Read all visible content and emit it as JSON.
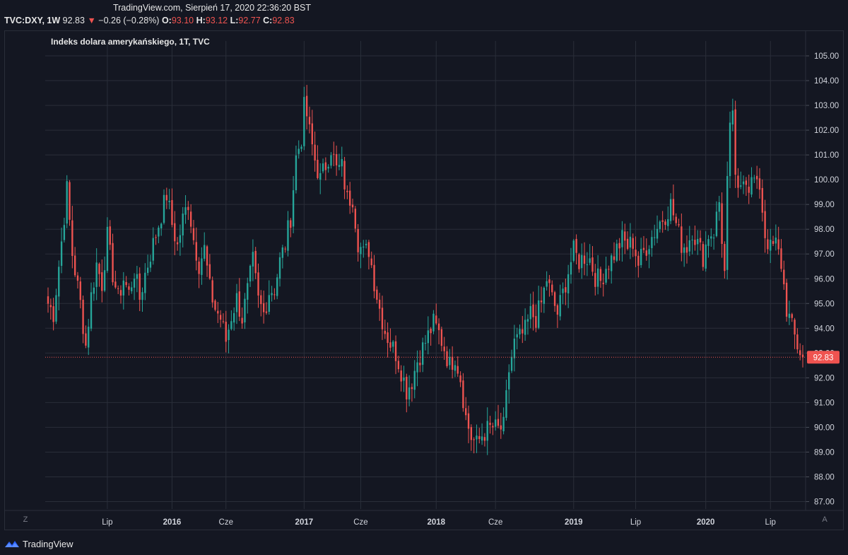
{
  "header": {
    "title": "TradingView.com, Sierpień 17, 2020 22:36:20 BST",
    "symbol": "TVC:DXY, 1W",
    "last": "92.83",
    "change_arrow": "▼",
    "change": "−0.26 (−0.28%)",
    "o_label": "O:",
    "o_value": "93.10",
    "h_label": "H:",
    "h_value": "93.12",
    "l_label": "L:",
    "l_value": "92.77",
    "c_label": "C:",
    "c_value": "92.83"
  },
  "chart_title": "Indeks dolara amerykańskiego, 1T, TVC",
  "buttons": {
    "left_corner": "Z",
    "right_corner": "A"
  },
  "footer": {
    "brand": "TradingView",
    "icon": "tradingview-logo-icon"
  },
  "colors": {
    "background": "#141722",
    "grid": "#2a2e39",
    "up": "#26a69a",
    "down": "#ef5350",
    "price_line": "#ef5350"
  },
  "chart_data": {
    "type": "candlestick",
    "title": "Indeks dolara amerykańskiego, 1T, TVC",
    "symbol": "TVC:DXY",
    "interval": "1W",
    "ylim": [
      86.7,
      105.6
    ],
    "y_ticks": [
      "87.00",
      "88.00",
      "89.00",
      "90.00",
      "91.00",
      "92.00",
      "93.00",
      "94.00",
      "95.00",
      "96.00",
      "97.00",
      "98.00",
      "99.00",
      "100.00",
      "101.00",
      "102.00",
      "103.00",
      "104.00",
      "105.00"
    ],
    "y_tick_values": [
      87,
      88,
      89,
      90,
      91,
      92,
      93,
      94,
      95,
      96,
      97,
      98,
      99,
      100,
      101,
      102,
      103,
      104,
      105
    ],
    "x_labels": [
      "Lip",
      "2016",
      "Cze",
      "2017",
      "Cze",
      "2018",
      "Cze",
      "2019",
      "Lip",
      "2020",
      "Lip"
    ],
    "x_label_bold": [
      false,
      true,
      false,
      true,
      false,
      true,
      false,
      true,
      false,
      true,
      false
    ],
    "x_label_index": [
      22,
      46,
      66,
      95,
      116,
      144,
      166,
      195,
      218,
      244,
      268
    ],
    "last_price": 92.83,
    "last_price_label": "92.83",
    "grid": true,
    "price_path": [
      [
        0,
        95.0
      ],
      [
        2,
        94.6
      ],
      [
        5,
        97.5
      ],
      [
        7,
        99.6
      ],
      [
        9,
        97.0
      ],
      [
        12,
        95.0
      ],
      [
        14,
        93.3
      ],
      [
        16,
        95.3
      ],
      [
        18,
        96.6
      ],
      [
        20,
        95.8
      ],
      [
        22,
        97.7
      ],
      [
        24,
        96.2
      ],
      [
        26,
        95.2
      ],
      [
        28,
        96.0
      ],
      [
        30,
        95.4
      ],
      [
        32,
        96.3
      ],
      [
        34,
        95.2
      ],
      [
        36,
        96.2
      ],
      [
        38,
        97.0
      ],
      [
        40,
        97.8
      ],
      [
        42,
        98.6
      ],
      [
        44,
        99.4
      ],
      [
        46,
        98.2
      ],
      [
        48,
        97.3
      ],
      [
        50,
        98.4
      ],
      [
        52,
        99.1
      ],
      [
        54,
        97.6
      ],
      [
        56,
        96.6
      ],
      [
        58,
        97.2
      ],
      [
        60,
        95.6
      ],
      [
        62,
        94.8
      ],
      [
        64,
        94.4
      ],
      [
        66,
        93.5
      ],
      [
        68,
        94.5
      ],
      [
        70,
        95.2
      ],
      [
        72,
        94.4
      ],
      [
        74,
        95.5
      ],
      [
        76,
        96.7
      ],
      [
        78,
        95.1
      ],
      [
        80,
        94.6
      ],
      [
        82,
        95.5
      ],
      [
        84,
        95.6
      ],
      [
        86,
        96.7
      ],
      [
        88,
        97.4
      ],
      [
        90,
        98.5
      ],
      [
        92,
        100.9
      ],
      [
        94,
        101.7
      ],
      [
        95,
        102.9
      ],
      [
        96,
        102.6
      ],
      [
        97,
        101.9
      ],
      [
        99,
        100.8
      ],
      [
        101,
        100.0
      ],
      [
        103,
        100.6
      ],
      [
        105,
        101.3
      ],
      [
        107,
        100.4
      ],
      [
        109,
        100.5
      ],
      [
        111,
        99.2
      ],
      [
        113,
        99.3
      ],
      [
        115,
        97.5
      ],
      [
        117,
        97.0
      ],
      [
        119,
        97.2
      ],
      [
        121,
        95.9
      ],
      [
        123,
        94.8
      ],
      [
        125,
        93.9
      ],
      [
        127,
        93.4
      ],
      [
        129,
        93.0
      ],
      [
        131,
        92.3
      ],
      [
        133,
        91.5
      ],
      [
        135,
        91.9
      ],
      [
        137,
        92.7
      ],
      [
        139,
        93.2
      ],
      [
        141,
        93.7
      ],
      [
        143,
        94.2
      ],
      [
        145,
        93.8
      ],
      [
        147,
        93.2
      ],
      [
        149,
        92.5
      ],
      [
        151,
        92.9
      ],
      [
        153,
        92.0
      ],
      [
        155,
        90.4
      ],
      [
        157,
        89.6
      ],
      [
        159,
        89.3
      ],
      [
        161,
        89.7
      ],
      [
        163,
        89.9
      ],
      [
        165,
        90.0
      ],
      [
        167,
        89.9
      ],
      [
        169,
        90.0
      ],
      [
        171,
        92.3
      ],
      [
        173,
        93.4
      ],
      [
        175,
        93.6
      ],
      [
        177,
        93.9
      ],
      [
        179,
        94.6
      ],
      [
        181,
        94.4
      ],
      [
        183,
        95.0
      ],
      [
        185,
        96.0
      ],
      [
        187,
        95.2
      ],
      [
        189,
        94.6
      ],
      [
        191,
        95.4
      ],
      [
        193,
        96.3
      ],
      [
        195,
        97.1
      ],
      [
        197,
        96.7
      ],
      [
        199,
        96.9
      ],
      [
        201,
        96.8
      ],
      [
        203,
        96.1
      ],
      [
        205,
        95.9
      ],
      [
        207,
        96.5
      ],
      [
        209,
        96.8
      ],
      [
        211,
        97.2
      ],
      [
        213,
        97.6
      ],
      [
        215,
        97.3
      ],
      [
        217,
        97.5
      ],
      [
        219,
        96.6
      ],
      [
        221,
        97.1
      ],
      [
        223,
        97.5
      ],
      [
        225,
        97.9
      ],
      [
        227,
        98.3
      ],
      [
        229,
        98.6
      ],
      [
        231,
        99.0
      ],
      [
        233,
        98.2
      ],
      [
        235,
        97.4
      ],
      [
        237,
        97.3
      ],
      [
        239,
        98.0
      ],
      [
        241,
        97.4
      ],
      [
        243,
        96.9
      ],
      [
        245,
        97.8
      ],
      [
        247,
        97.9
      ],
      [
        249,
        99.1
      ],
      [
        251,
        96.2
      ],
      [
        252,
        99.8
      ],
      [
        253,
        101.9
      ],
      [
        254,
        102.9
      ],
      [
        255,
        99.8
      ],
      [
        256,
        99.4
      ],
      [
        258,
        100.3
      ],
      [
        260,
        99.8
      ],
      [
        262,
        100.0
      ],
      [
        263,
        99.6
      ],
      [
        264,
        99.8
      ],
      [
        266,
        97.8
      ],
      [
        268,
        97.2
      ],
      [
        270,
        97.4
      ],
      [
        272,
        96.6
      ],
      [
        274,
        94.8
      ],
      [
        276,
        94.0
      ],
      [
        278,
        93.3
      ],
      [
        280,
        92.83
      ]
    ]
  }
}
